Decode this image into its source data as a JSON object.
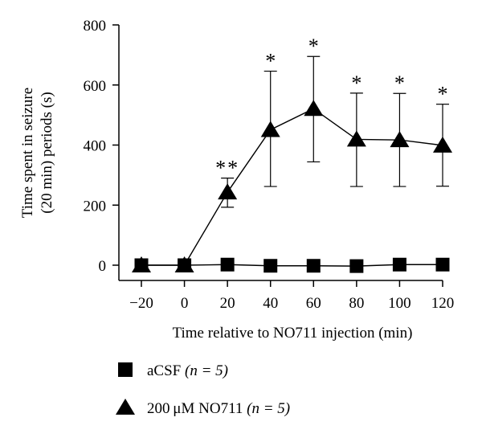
{
  "chart_data": {
    "type": "line",
    "xlabel": "Time relative to NO711 injection (min)",
    "ylabel_line1": "Time spent in seizure",
    "ylabel_line2": "(20 min) periods (s)",
    "xlim": [
      -20,
      120
    ],
    "ylim": [
      0,
      800
    ],
    "x_ticks": [
      -20,
      0,
      20,
      40,
      60,
      80,
      100,
      120
    ],
    "x_tick_labels": [
      "−20",
      "0",
      "20",
      "40",
      "60",
      "80",
      "100",
      "120"
    ],
    "y_ticks": [
      0,
      200,
      400,
      600,
      800
    ],
    "y_tick_labels": [
      "0",
      "200",
      "400",
      "600",
      "800"
    ],
    "series": [
      {
        "name": "aCSF",
        "legend_name": "aCSF",
        "legend_n": "(n = 5)",
        "marker": "square",
        "connected": true,
        "x": [
          -20,
          0,
          20,
          40,
          60,
          80,
          100,
          120
        ],
        "values": [
          0,
          0,
          2,
          -2,
          -2,
          -3,
          2,
          2
        ]
      },
      {
        "name": "200 μM NO711",
        "legend_name": "200 μM NO711",
        "legend_n": "(n = 5)",
        "marker": "triangle",
        "connected": true,
        "x": [
          -20,
          0,
          20,
          40,
          60,
          80,
          100,
          120
        ],
        "values": [
          0,
          0,
          243,
          451,
          521,
          419,
          417,
          399
        ],
        "error_upper": [
          0,
          0,
          290,
          646,
          695,
          573,
          572,
          536
        ],
        "error_lower": [
          0,
          0,
          193,
          262,
          344,
          262,
          262,
          263
        ]
      }
    ],
    "annotations": [
      {
        "x": 20,
        "text": "**"
      },
      {
        "x": 40,
        "text": "*"
      },
      {
        "x": 60,
        "text": "*"
      },
      {
        "x": 80,
        "text": "*"
      },
      {
        "x": 100,
        "text": "*"
      },
      {
        "x": 120,
        "text": "*"
      }
    ]
  }
}
